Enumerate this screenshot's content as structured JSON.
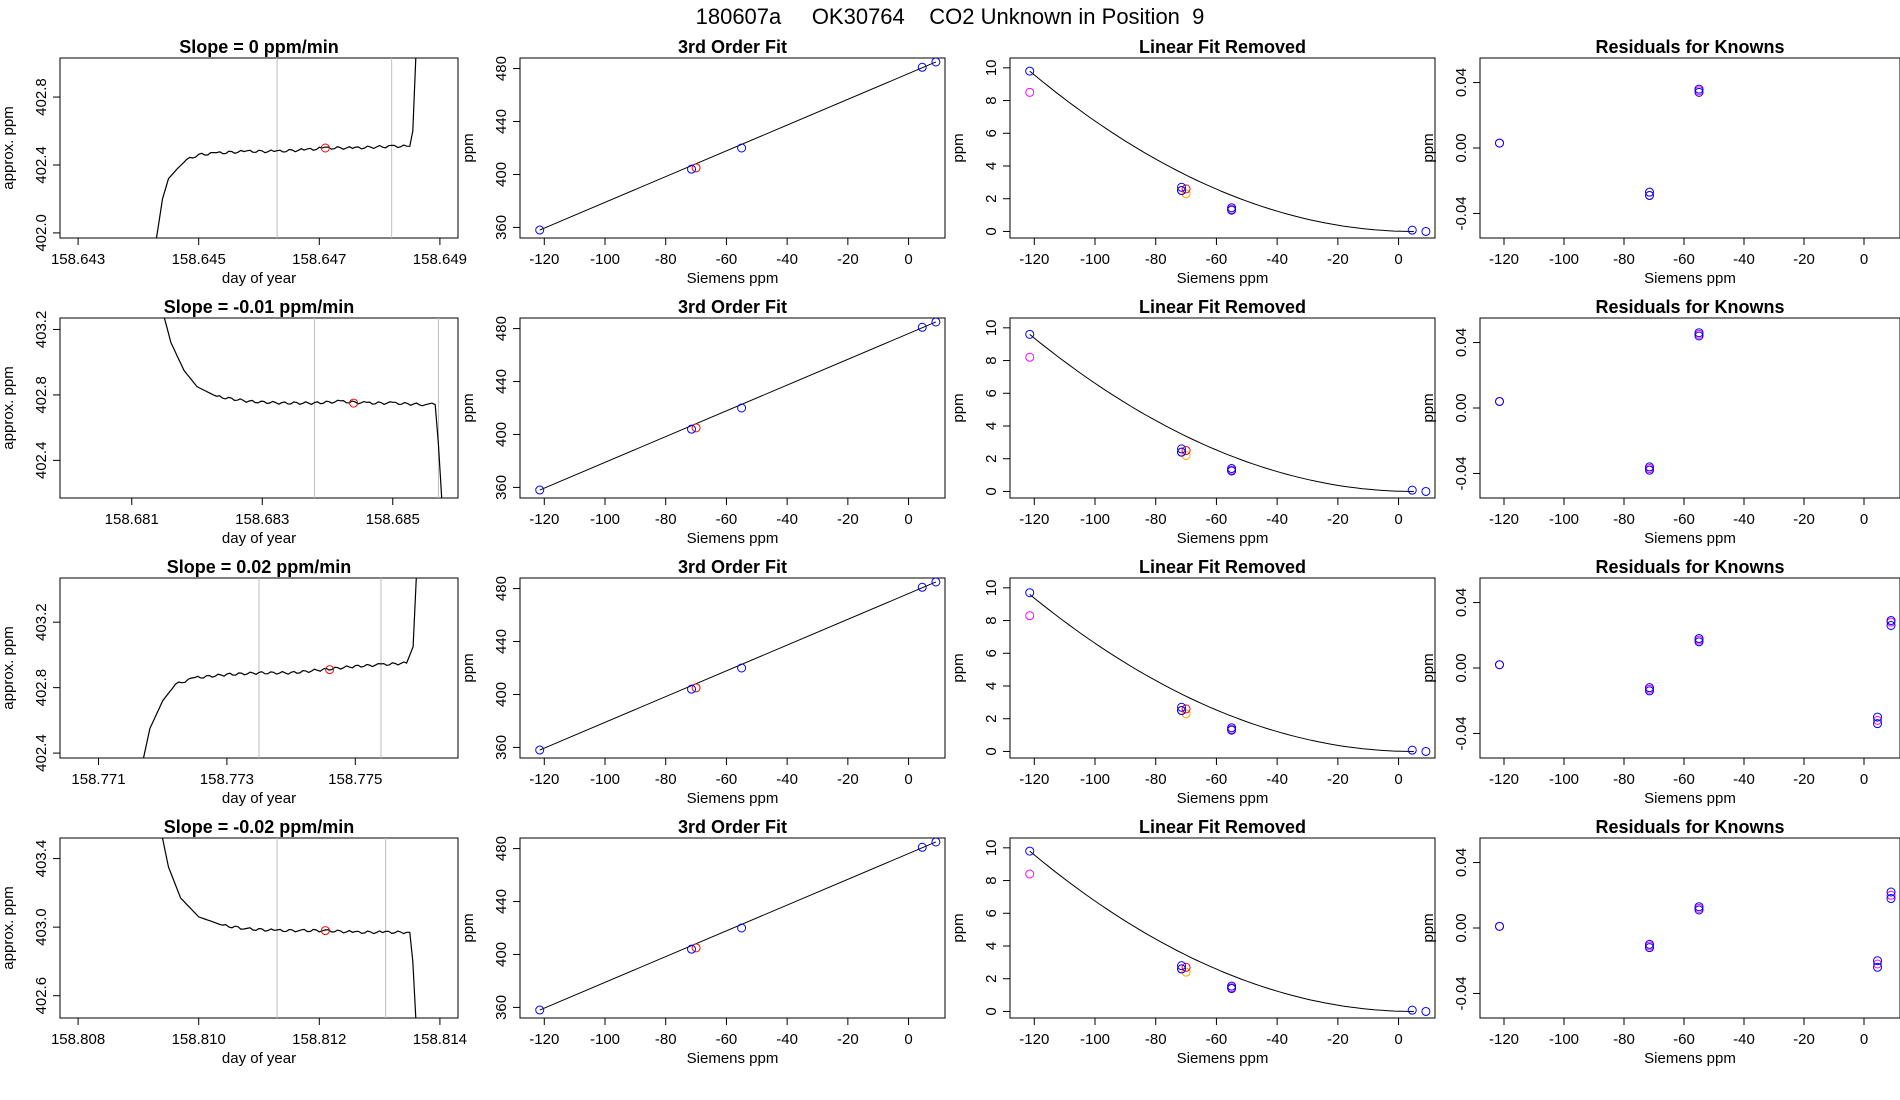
{
  "title": "180607a     OK30764    CO2 Unknown in Position  9",
  "colors": {
    "trace": "#000000",
    "fit_line": "#000000",
    "known": "#0000ff",
    "alt": "#ff00ff",
    "unknown": "#ff0000",
    "orange": "#ffa500",
    "divider": "#bebebe"
  },
  "chart_data": [
    {
      "type": "line",
      "row": 0,
      "col": 0,
      "title": "Slope =  0  ppm/min",
      "xlabel": "day of year",
      "ylabel": "approx. ppm",
      "xlim": [
        158.6427,
        158.6493
      ],
      "ylim": [
        401.97,
        403.03
      ],
      "xticks": [
        "158.643",
        "158.645",
        "158.647",
        "158.649"
      ],
      "yticks": [
        "402.0",
        "402.4",
        "402.8"
      ],
      "vlines": [
        158.6463,
        158.6482
      ],
      "trace": [
        [
          158.6443,
          401.97
        ],
        [
          158.6444,
          402.2
        ],
        [
          158.6445,
          402.32
        ],
        [
          158.64465,
          402.38
        ],
        [
          158.6448,
          402.43
        ],
        [
          158.645,
          402.46
        ],
        [
          158.6453,
          402.47
        ],
        [
          158.6458,
          402.48
        ],
        [
          158.6463,
          402.48
        ],
        [
          158.6468,
          402.49
        ],
        [
          158.6471,
          402.5
        ],
        [
          158.6476,
          402.5
        ],
        [
          158.6482,
          402.51
        ],
        [
          158.6485,
          402.51
        ],
        [
          158.64855,
          402.6
        ],
        [
          158.6486,
          403.03
        ]
      ],
      "marker": [
        158.6471,
        402.5
      ]
    },
    {
      "type": "scatter",
      "row": 0,
      "col": 1,
      "title": "3rd Order Fit",
      "xlabel": "Siemens ppm",
      "ylabel": "ppm",
      "xlim": [
        -128,
        12
      ],
      "ylim": [
        352,
        488
      ],
      "xticks": [
        -120,
        -100,
        -80,
        -60,
        -40,
        -20,
        0
      ],
      "yticks": [
        360,
        400,
        440,
        480
      ],
      "curve": [
        [
          -121.5,
          358
        ],
        [
          9,
          485
        ]
      ],
      "known": [
        [
          -121.5,
          358
        ],
        [
          -71.5,
          404
        ],
        [
          -55,
          420
        ],
        [
          4.5,
          481
        ],
        [
          9,
          485
        ]
      ],
      "unknown": [
        [
          -70,
          405
        ]
      ]
    },
    {
      "type": "scatter",
      "row": 0,
      "col": 2,
      "title": "Linear Fit Removed",
      "xlabel": "Siemens ppm",
      "ylabel": "ppm",
      "xlim": [
        -128,
        12
      ],
      "ylim": [
        -0.4,
        10.6
      ],
      "xticks": [
        -120,
        -100,
        -80,
        -60,
        -40,
        -20,
        0
      ],
      "yticks": [
        0,
        2,
        4,
        6,
        8,
        10
      ],
      "curve_coef": [
        -121.5,
        9.8,
        5
      ],
      "known": [
        [
          -121.5,
          9.8
        ],
        [
          -71.5,
          2.7
        ],
        [
          -71.5,
          2.5
        ],
        [
          -55,
          1.45
        ],
        [
          -55,
          1.3
        ],
        [
          4.5,
          0.08
        ],
        [
          9,
          0.0
        ]
      ],
      "alt": [
        [
          -121.5,
          8.5
        ],
        [
          -71.5,
          2.5
        ],
        [
          -55,
          1.35
        ]
      ],
      "orange": [
        [
          -70,
          2.3
        ]
      ],
      "unknown": [
        [
          -70,
          2.6
        ]
      ]
    },
    {
      "type": "scatter",
      "row": 0,
      "col": 3,
      "title": "Residuals for Knowns",
      "xlabel": "Siemens ppm",
      "ylabel": "ppm",
      "xlim": [
        -128,
        12
      ],
      "ylim": [
        -0.055,
        0.055
      ],
      "xticks": [
        -120,
        -100,
        -80,
        -60,
        -40,
        -20,
        0
      ],
      "yticks": [
        "-0.04",
        "0.00",
        "0.04"
      ],
      "known": [
        [
          -121.5,
          0.003
        ],
        [
          -71.5,
          -0.027
        ],
        [
          -71.5,
          -0.029
        ],
        [
          -55,
          0.036
        ],
        [
          -55,
          0.034
        ]
      ],
      "alt": [
        [
          -121.5,
          0.003
        ],
        [
          -71.5,
          -0.029
        ],
        [
          -55,
          0.035
        ]
      ]
    },
    {
      "type": "line",
      "row": 1,
      "col": 0,
      "title": "Slope =  -0.01  ppm/min",
      "xlabel": "day of year",
      "ylabel": "approx. ppm",
      "xlim": [
        158.6799,
        158.686
      ],
      "ylim": [
        402.17,
        403.27
      ],
      "xticks": [
        "158.681",
        "158.683",
        "158.685"
      ],
      "yticks": [
        "402.4",
        "402.8",
        "403.2"
      ],
      "vlines": [
        158.6838,
        158.6857
      ],
      "trace": [
        [
          158.6815,
          403.27
        ],
        [
          158.6816,
          403.12
        ],
        [
          158.6818,
          402.95
        ],
        [
          158.682,
          402.85
        ],
        [
          158.6823,
          402.79
        ],
        [
          158.6828,
          402.76
        ],
        [
          158.6833,
          402.75
        ],
        [
          158.6838,
          402.75
        ],
        [
          158.6842,
          402.76
        ],
        [
          158.6846,
          402.75
        ],
        [
          158.685,
          402.75
        ],
        [
          158.6855,
          402.74
        ],
        [
          158.6856,
          402.75
        ],
        [
          158.68565,
          402.74
        ],
        [
          158.6857,
          402.5
        ],
        [
          158.68575,
          402.17
        ]
      ],
      "marker": [
        158.6844,
        402.75
      ]
    },
    {
      "type": "scatter",
      "row": 1,
      "col": 1,
      "title": "3rd Order Fit",
      "xlabel": "Siemens ppm",
      "ylabel": "ppm",
      "xlim": [
        -128,
        12
      ],
      "ylim": [
        352,
        488
      ],
      "xticks": [
        -120,
        -100,
        -80,
        -60,
        -40,
        -20,
        0
      ],
      "yticks": [
        360,
        400,
        440,
        480
      ],
      "curve": [
        [
          -121.5,
          358
        ],
        [
          9,
          485
        ]
      ],
      "known": [
        [
          -121.5,
          358
        ],
        [
          -71.5,
          404
        ],
        [
          -55,
          420
        ],
        [
          4.5,
          481
        ],
        [
          9,
          485
        ]
      ],
      "unknown": [
        [
          -70,
          405
        ]
      ]
    },
    {
      "type": "scatter",
      "row": 1,
      "col": 2,
      "title": "Linear Fit Removed",
      "xlabel": "Siemens ppm",
      "ylabel": "ppm",
      "xlim": [
        -128,
        12
      ],
      "ylim": [
        -0.4,
        10.6
      ],
      "xticks": [
        -120,
        -100,
        -80,
        -60,
        -40,
        -20,
        0
      ],
      "yticks": [
        0,
        2,
        4,
        6,
        8,
        10
      ],
      "curve_coef": [
        -121.5,
        9.6,
        5
      ],
      "known": [
        [
          -121.5,
          9.6
        ],
        [
          -71.5,
          2.6
        ],
        [
          -71.5,
          2.4
        ],
        [
          -55,
          1.4
        ],
        [
          -55,
          1.25
        ],
        [
          4.5,
          0.08
        ],
        [
          9,
          0.0
        ]
      ],
      "alt": [
        [
          -121.5,
          8.2
        ],
        [
          -71.5,
          2.4
        ],
        [
          -55,
          1.3
        ]
      ],
      "orange": [
        [
          -70,
          2.2
        ]
      ],
      "unknown": [
        [
          -70,
          2.5
        ]
      ]
    },
    {
      "type": "scatter",
      "row": 1,
      "col": 3,
      "title": "Residuals for Knowns",
      "xlabel": "Siemens ppm",
      "ylabel": "ppm",
      "xlim": [
        -128,
        12
      ],
      "ylim": [
        -0.055,
        0.055
      ],
      "xticks": [
        -120,
        -100,
        -80,
        -60,
        -40,
        -20,
        0
      ],
      "yticks": [
        "-0.04",
        "0.00",
        "0.04"
      ],
      "known": [
        [
          -121.5,
          0.004
        ],
        [
          -71.5,
          -0.036
        ],
        [
          -71.5,
          -0.038
        ],
        [
          -55,
          0.046
        ],
        [
          -55,
          0.044
        ]
      ],
      "alt": [
        [
          -121.5,
          0.004
        ],
        [
          -71.5,
          -0.037
        ],
        [
          -55,
          0.045
        ]
      ]
    },
    {
      "type": "line",
      "row": 2,
      "col": 0,
      "title": "Slope =  0.02  ppm/min",
      "xlabel": "day of year",
      "ylabel": "approx. ppm",
      "xlim": [
        158.7704,
        158.7766
      ],
      "ylim": [
        402.37,
        403.47
      ],
      "xticks": [
        "158.771",
        "158.773",
        "158.775"
      ],
      "yticks": [
        "402.4",
        "402.8",
        "403.2"
      ],
      "vlines": [
        158.7735,
        158.7754
      ],
      "trace": [
        [
          158.7717,
          402.37
        ],
        [
          158.7718,
          402.55
        ],
        [
          158.772,
          402.72
        ],
        [
          158.7722,
          402.82
        ],
        [
          158.7725,
          402.86
        ],
        [
          158.773,
          402.88
        ],
        [
          158.7735,
          402.89
        ],
        [
          158.774,
          402.89
        ],
        [
          158.7745,
          402.91
        ],
        [
          158.775,
          402.93
        ],
        [
          158.7754,
          402.94
        ],
        [
          158.7758,
          402.95
        ],
        [
          158.7759,
          403.05
        ],
        [
          158.77595,
          403.47
        ]
      ],
      "marker": [
        158.7746,
        402.91
      ]
    },
    {
      "type": "scatter",
      "row": 2,
      "col": 1,
      "title": "3rd Order Fit",
      "xlabel": "Siemens ppm",
      "ylabel": "ppm",
      "xlim": [
        -128,
        12
      ],
      "ylim": [
        352,
        488
      ],
      "xticks": [
        -120,
        -100,
        -80,
        -60,
        -40,
        -20,
        0
      ],
      "yticks": [
        360,
        400,
        440,
        480
      ],
      "curve": [
        [
          -121.5,
          358
        ],
        [
          9,
          485
        ]
      ],
      "known": [
        [
          -121.5,
          358
        ],
        [
          -71.5,
          404
        ],
        [
          -55,
          420
        ],
        [
          4.5,
          481
        ],
        [
          9,
          485
        ]
      ],
      "unknown": [
        [
          -70,
          405
        ]
      ]
    },
    {
      "type": "scatter",
      "row": 2,
      "col": 2,
      "title": "Linear Fit Removed",
      "xlabel": "Siemens ppm",
      "ylabel": "ppm",
      "xlim": [
        -128,
        12
      ],
      "ylim": [
        -0.4,
        10.6
      ],
      "xticks": [
        -120,
        -100,
        -80,
        -60,
        -40,
        -20,
        0
      ],
      "yticks": [
        0,
        2,
        4,
        6,
        8,
        10
      ],
      "curve_coef": [
        -121.5,
        9.6,
        5
      ],
      "known": [
        [
          -121.5,
          9.7
        ],
        [
          -71.5,
          2.7
        ],
        [
          -71.5,
          2.5
        ],
        [
          -55,
          1.45
        ],
        [
          -55,
          1.3
        ],
        [
          4.5,
          0.08
        ],
        [
          9,
          0.0
        ]
      ],
      "alt": [
        [
          -121.5,
          8.3
        ],
        [
          -71.5,
          2.5
        ],
        [
          -55,
          1.35
        ]
      ],
      "orange": [
        [
          -70,
          2.3
        ]
      ],
      "unknown": [
        [
          -70,
          2.6
        ]
      ]
    },
    {
      "type": "scatter",
      "row": 2,
      "col": 3,
      "title": "Residuals for Knowns",
      "xlabel": "Siemens ppm",
      "ylabel": "ppm",
      "xlim": [
        -128,
        12
      ],
      "ylim": [
        -0.055,
        0.055
      ],
      "xticks": [
        -120,
        -100,
        -80,
        -60,
        -40,
        -20,
        0
      ],
      "yticks": [
        "-0.04",
        "0.00",
        "0.04"
      ],
      "known": [
        [
          -121.5,
          0.002
        ],
        [
          -71.5,
          -0.012
        ],
        [
          -71.5,
          -0.014
        ],
        [
          -55,
          0.018
        ],
        [
          -55,
          0.016
        ],
        [
          4.5,
          -0.03
        ],
        [
          4.5,
          -0.034
        ],
        [
          9,
          0.029
        ],
        [
          9,
          0.026
        ]
      ],
      "alt": [
        [
          -121.5,
          0.002
        ],
        [
          -71.5,
          -0.013
        ],
        [
          -55,
          0.017
        ],
        [
          4.5,
          -0.032
        ],
        [
          9,
          0.028
        ]
      ]
    },
    {
      "type": "line",
      "row": 3,
      "col": 0,
      "title": "Slope =  -0.02  ppm/min",
      "xlabel": "day of year",
      "ylabel": "approx. ppm",
      "xlim": [
        158.8077,
        158.8143
      ],
      "ylim": [
        402.47,
        403.52
      ],
      "xticks": [
        "158.808",
        "158.810",
        "158.812",
        "158.814"
      ],
      "yticks": [
        "402.6",
        "403.0",
        "403.4"
      ],
      "vlines": [
        158.8113,
        158.8131
      ],
      "trace": [
        [
          158.8094,
          403.52
        ],
        [
          158.8095,
          403.35
        ],
        [
          158.8097,
          403.17
        ],
        [
          158.81,
          403.06
        ],
        [
          158.8104,
          403.01
        ],
        [
          158.8108,
          402.99
        ],
        [
          158.8113,
          402.98
        ],
        [
          158.8117,
          402.98
        ],
        [
          158.8121,
          402.98
        ],
        [
          158.8126,
          402.97
        ],
        [
          158.8131,
          402.97
        ],
        [
          158.8135,
          402.97
        ],
        [
          158.81355,
          402.8
        ],
        [
          158.8136,
          402.47
        ]
      ],
      "marker": [
        158.8121,
        402.98
      ]
    },
    {
      "type": "scatter",
      "row": 3,
      "col": 1,
      "title": "3rd Order Fit",
      "xlabel": "Siemens ppm",
      "ylabel": "ppm",
      "xlim": [
        -128,
        12
      ],
      "ylim": [
        352,
        488
      ],
      "xticks": [
        -120,
        -100,
        -80,
        -60,
        -40,
        -20,
        0
      ],
      "yticks": [
        360,
        400,
        440,
        480
      ],
      "curve": [
        [
          -121.5,
          358
        ],
        [
          9,
          485
        ]
      ],
      "known": [
        [
          -121.5,
          358
        ],
        [
          -71.5,
          404
        ],
        [
          -55,
          420
        ],
        [
          4.5,
          481
        ],
        [
          9,
          485
        ]
      ],
      "unknown": [
        [
          -70,
          405
        ]
      ]
    },
    {
      "type": "scatter",
      "row": 3,
      "col": 2,
      "title": "Linear Fit Removed",
      "xlabel": "Siemens ppm",
      "ylabel": "ppm",
      "xlim": [
        -128,
        12
      ],
      "ylim": [
        -0.4,
        10.6
      ],
      "xticks": [
        -120,
        -100,
        -80,
        -60,
        -40,
        -20,
        0
      ],
      "yticks": [
        0,
        2,
        4,
        6,
        8,
        10
      ],
      "curve_coef": [
        -121.5,
        9.8,
        5
      ],
      "known": [
        [
          -121.5,
          9.8
        ],
        [
          -71.5,
          2.8
        ],
        [
          -71.5,
          2.6
        ],
        [
          -55,
          1.55
        ],
        [
          -55,
          1.4
        ],
        [
          4.5,
          0.08
        ],
        [
          9,
          0.0
        ]
      ],
      "alt": [
        [
          -121.5,
          8.4
        ],
        [
          -71.5,
          2.6
        ],
        [
          -55,
          1.45
        ]
      ],
      "orange": [
        [
          -70,
          2.4
        ]
      ],
      "unknown": [
        [
          -70,
          2.7
        ]
      ]
    },
    {
      "type": "scatter",
      "row": 3,
      "col": 3,
      "title": "Residuals for Knowns",
      "xlabel": "Siemens ppm",
      "ylabel": "ppm",
      "xlim": [
        -128,
        12
      ],
      "ylim": [
        -0.055,
        0.055
      ],
      "xticks": [
        -120,
        -100,
        -80,
        -60,
        -40,
        -20,
        0
      ],
      "yticks": [
        "-0.04",
        "0.00",
        "0.04"
      ],
      "known": [
        [
          -121.5,
          0.001
        ],
        [
          -71.5,
          -0.01
        ],
        [
          -71.5,
          -0.012
        ],
        [
          -55,
          0.013
        ],
        [
          -55,
          0.011
        ],
        [
          4.5,
          -0.02
        ],
        [
          4.5,
          -0.024
        ],
        [
          9,
          0.022
        ],
        [
          9,
          0.018
        ]
      ],
      "alt": [
        [
          -121.5,
          0.001
        ],
        [
          -71.5,
          -0.011
        ],
        [
          -55,
          0.012
        ],
        [
          4.5,
          -0.022
        ],
        [
          9,
          0.02
        ]
      ]
    }
  ]
}
